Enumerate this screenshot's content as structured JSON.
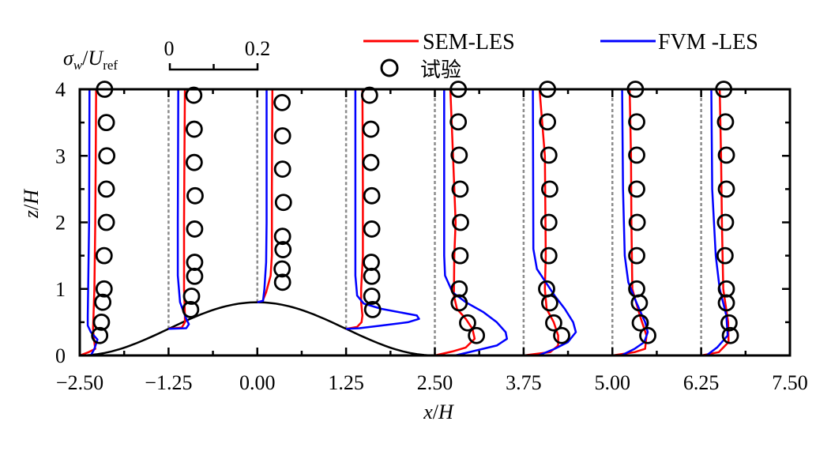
{
  "chart_data": {
    "type": "line",
    "xlabel_var": "x",
    "xlabel_unit": "H",
    "ylabel_var": "z",
    "ylabel_unit": "H",
    "xlim": [
      -2.5,
      7.5
    ],
    "ylim": [
      0,
      4
    ],
    "x_ticks": [
      "−2.50",
      "−1.25",
      "0.00",
      "1.25",
      "2.50",
      "3.75",
      "5.00",
      "6.25",
      "7.50"
    ],
    "x_tick_values": [
      -2.5,
      -1.25,
      0,
      1.25,
      2.5,
      3.75,
      5,
      6.25,
      7.5
    ],
    "y_ticks": [
      "0",
      "1",
      "2",
      "3",
      "4"
    ],
    "y_tick_values": [
      0,
      1,
      2,
      3,
      4
    ],
    "grid": false,
    "scale_bar": {
      "label_var": "σ",
      "label_sub": "w",
      "label_div": "U",
      "label_sub2": "ref",
      "min_label": "0",
      "max_label": "0.2",
      "max": 0.2
    },
    "legend_placement": "top",
    "series_styles": [
      {
        "name": "SEM-LES",
        "color": "#ff0000",
        "kind": "line"
      },
      {
        "name": "FVM -LES",
        "color": "#0000ff",
        "kind": "line"
      },
      {
        "name": "试验",
        "color": "#000000",
        "kind": "marker-circle"
      }
    ],
    "hill": {
      "height": 0.8,
      "x_start": -2.5,
      "x_end": 2.5
    },
    "stations": [
      {
        "x": -2.5,
        "exp": [
          [
            4.0,
            0.056
          ],
          [
            3.5,
            0.06
          ],
          [
            3.0,
            0.061
          ],
          [
            2.5,
            0.06
          ],
          [
            2.0,
            0.06
          ],
          [
            1.5,
            0.055
          ],
          [
            1.0,
            0.055
          ],
          [
            0.8,
            0.052
          ],
          [
            0.5,
            0.049
          ],
          [
            0.3,
            0.045
          ]
        ],
        "sem": [
          [
            0,
            0
          ],
          [
            0.05,
            0.02
          ],
          [
            0.1,
            0.035
          ],
          [
            0.25,
            0.032
          ],
          [
            0.4,
            0.03
          ],
          [
            1.0,
            0.033
          ],
          [
            2.0,
            0.035
          ],
          [
            3.0,
            0.036
          ],
          [
            4.0,
            0.037
          ]
        ],
        "fvm": [
          [
            0,
            0.025
          ],
          [
            0.1,
            0.033
          ],
          [
            0.24,
            0.04
          ],
          [
            0.35,
            0.025
          ],
          [
            0.45,
            0.018
          ],
          [
            0.6,
            0.018
          ],
          [
            1.0,
            0.019
          ],
          [
            2.0,
            0.021
          ],
          [
            4.0,
            0.022
          ]
        ]
      },
      {
        "x": -1.25,
        "exp": [
          [
            3.91,
            0.057
          ],
          [
            3.4,
            0.058
          ],
          [
            2.9,
            0.058
          ],
          [
            2.4,
            0.06
          ],
          [
            1.9,
            0.059
          ],
          [
            1.4,
            0.059
          ],
          [
            1.19,
            0.059
          ],
          [
            0.89,
            0.052
          ],
          [
            0.69,
            0.05
          ]
        ],
        "sem": [
          [
            0.4,
            0
          ],
          [
            0.42,
            0.03
          ],
          [
            0.5,
            0.037
          ],
          [
            0.6,
            0.037
          ],
          [
            1.0,
            0.035
          ],
          [
            2.0,
            0.035
          ],
          [
            3.0,
            0.036
          ],
          [
            4.0,
            0.037
          ]
        ],
        "fvm": [
          [
            0.4,
            0
          ],
          [
            0.41,
            0.04
          ],
          [
            0.47,
            0.046
          ],
          [
            0.55,
            0.04
          ],
          [
            0.8,
            0.026
          ],
          [
            1.2,
            0.021
          ],
          [
            2.0,
            0.021
          ],
          [
            4.0,
            0.022
          ]
        ]
      },
      {
        "x": 0,
        "exp": [
          [
            3.8,
            0.056
          ],
          [
            3.3,
            0.057
          ],
          [
            2.8,
            0.057
          ],
          [
            2.3,
            0.059
          ],
          [
            1.79,
            0.057
          ],
          [
            1.59,
            0.058
          ],
          [
            1.3,
            0.056
          ],
          [
            1.1,
            0.057
          ]
        ],
        "sem": [
          [
            0.8,
            0
          ],
          [
            0.82,
            0.012
          ],
          [
            0.95,
            0.02
          ],
          [
            1.2,
            0.03
          ],
          [
            1.5,
            0.033
          ],
          [
            2.5,
            0.033
          ],
          [
            4.0,
            0.034
          ]
        ],
        "fvm": [
          [
            0.8,
            0
          ],
          [
            0.82,
            0.013
          ],
          [
            1.0,
            0.016
          ],
          [
            1.4,
            0.02
          ],
          [
            2.0,
            0.021
          ],
          [
            4.0,
            0.021
          ]
        ]
      },
      {
        "x": 1.25,
        "exp": [
          [
            3.91,
            0.053
          ],
          [
            3.4,
            0.056
          ],
          [
            2.9,
            0.056
          ],
          [
            2.4,
            0.058
          ],
          [
            1.9,
            0.058
          ],
          [
            1.4,
            0.057
          ],
          [
            1.19,
            0.058
          ],
          [
            0.89,
            0.058
          ],
          [
            0.69,
            0.06
          ]
        ],
        "sem": [
          [
            0.4,
            0
          ],
          [
            0.43,
            0.025
          ],
          [
            0.5,
            0.035
          ],
          [
            0.6,
            0.037
          ],
          [
            0.8,
            0.034
          ],
          [
            1.0,
            0.034
          ],
          [
            1.5,
            0.038
          ],
          [
            2.5,
            0.038
          ],
          [
            4.0,
            0.037
          ]
        ],
        "fvm": [
          [
            0.4,
            0
          ],
          [
            0.41,
            0.03
          ],
          [
            0.45,
            0.08
          ],
          [
            0.5,
            0.14
          ],
          [
            0.55,
            0.165
          ],
          [
            0.6,
            0.16
          ],
          [
            0.7,
            0.08
          ],
          [
            0.78,
            0.04
          ],
          [
            0.9,
            0.025
          ],
          [
            1.2,
            0.021
          ],
          [
            4.0,
            0.021
          ]
        ]
      },
      {
        "x": 2.5,
        "exp": [
          [
            4.0,
            0.053
          ],
          [
            3.51,
            0.053
          ],
          [
            3.01,
            0.055
          ],
          [
            2.5,
            0.057
          ],
          [
            2.0,
            0.058
          ],
          [
            1.5,
            0.057
          ],
          [
            1.0,
            0.055
          ],
          [
            0.79,
            0.055
          ],
          [
            0.49,
            0.074
          ],
          [
            0.3,
            0.094
          ]
        ],
        "sem": [
          [
            0,
            0
          ],
          [
            0.06,
            0.04
          ],
          [
            0.12,
            0.07
          ],
          [
            0.25,
            0.09
          ],
          [
            0.4,
            0.085
          ],
          [
            0.55,
            0.07
          ],
          [
            0.7,
            0.05
          ],
          [
            0.9,
            0.043
          ],
          [
            1.5,
            0.044
          ],
          [
            2.0,
            0.047
          ],
          [
            3.0,
            0.041
          ],
          [
            4.0,
            0.035
          ]
        ],
        "fvm": [
          [
            0,
            0.046
          ],
          [
            0.07,
            0.09
          ],
          [
            0.15,
            0.14
          ],
          [
            0.25,
            0.163
          ],
          [
            0.35,
            0.16
          ],
          [
            0.5,
            0.14
          ],
          [
            0.65,
            0.11
          ],
          [
            0.8,
            0.07
          ],
          [
            0.95,
            0.04
          ],
          [
            1.2,
            0.023
          ],
          [
            1.5,
            0.021
          ],
          [
            4.0,
            0.021
          ]
        ]
      },
      {
        "x": 3.75,
        "exp": [
          [
            4.0,
            0.054
          ],
          [
            3.51,
            0.054
          ],
          [
            3.01,
            0.057
          ],
          [
            2.5,
            0.059
          ],
          [
            2.0,
            0.057
          ],
          [
            1.5,
            0.057
          ],
          [
            1.0,
            0.052
          ],
          [
            0.79,
            0.059
          ],
          [
            0.49,
            0.068
          ],
          [
            0.3,
            0.086
          ]
        ],
        "sem": [
          [
            0,
            0
          ],
          [
            0.05,
            0.06
          ],
          [
            0.15,
            0.078
          ],
          [
            0.3,
            0.078
          ],
          [
            0.5,
            0.068
          ],
          [
            0.7,
            0.052
          ],
          [
            1.0,
            0.048
          ],
          [
            1.5,
            0.05
          ],
          [
            3.0,
            0.048
          ],
          [
            4.0,
            0.036
          ]
        ],
        "fvm": [
          [
            0,
            0.033
          ],
          [
            0.1,
            0.07
          ],
          [
            0.2,
            0.1
          ],
          [
            0.35,
            0.118
          ],
          [
            0.5,
            0.112
          ],
          [
            0.7,
            0.093
          ],
          [
            0.9,
            0.07
          ],
          [
            1.1,
            0.05
          ],
          [
            1.3,
            0.03
          ],
          [
            1.6,
            0.022
          ],
          [
            4.0,
            0.021
          ]
        ]
      },
      {
        "x": 5.0,
        "exp": [
          [
            4.0,
            0.052
          ],
          [
            3.51,
            0.055
          ],
          [
            3.01,
            0.055
          ],
          [
            2.5,
            0.055
          ],
          [
            2.0,
            0.056
          ],
          [
            1.5,
            0.055
          ],
          [
            1.0,
            0.055
          ],
          [
            0.79,
            0.061
          ],
          [
            0.49,
            0.063
          ],
          [
            0.3,
            0.08
          ]
        ],
        "sem": [
          [
            0,
            0
          ],
          [
            0.05,
            0.05
          ],
          [
            0.1,
            0.074
          ],
          [
            0.3,
            0.077
          ],
          [
            0.6,
            0.062
          ],
          [
            1.0,
            0.045
          ],
          [
            2.0,
            0.043
          ],
          [
            3.0,
            0.042
          ],
          [
            4.0,
            0.039
          ]
        ],
        "fvm": [
          [
            0,
            0.02
          ],
          [
            0.1,
            0.05
          ],
          [
            0.2,
            0.072
          ],
          [
            0.35,
            0.08
          ],
          [
            0.5,
            0.074
          ],
          [
            0.8,
            0.054
          ],
          [
            1.1,
            0.036
          ],
          [
            1.5,
            0.028
          ],
          [
            2.5,
            0.024
          ],
          [
            4.0,
            0.022
          ]
        ]
      },
      {
        "x": 6.25,
        "exp": [
          [
            4.0,
            0.051
          ],
          [
            3.51,
            0.055
          ],
          [
            3.01,
            0.057
          ],
          [
            2.5,
            0.057
          ],
          [
            2.0,
            0.055
          ],
          [
            1.5,
            0.054
          ],
          [
            1.0,
            0.057
          ],
          [
            0.79,
            0.057
          ],
          [
            0.49,
            0.063
          ],
          [
            0.3,
            0.066
          ]
        ],
        "sem": [
          [
            0,
            0
          ],
          [
            0.05,
            0.04
          ],
          [
            0.2,
            0.062
          ],
          [
            0.5,
            0.061
          ],
          [
            1.0,
            0.05
          ],
          [
            2.0,
            0.047
          ],
          [
            3.0,
            0.045
          ],
          [
            4.0,
            0.042
          ]
        ],
        "fvm": [
          [
            0,
            0.012
          ],
          [
            0.12,
            0.036
          ],
          [
            0.3,
            0.06
          ],
          [
            0.6,
            0.057
          ],
          [
            1.0,
            0.042
          ],
          [
            1.5,
            0.033
          ],
          [
            2.5,
            0.025
          ],
          [
            4.0,
            0.023
          ]
        ]
      }
    ]
  }
}
